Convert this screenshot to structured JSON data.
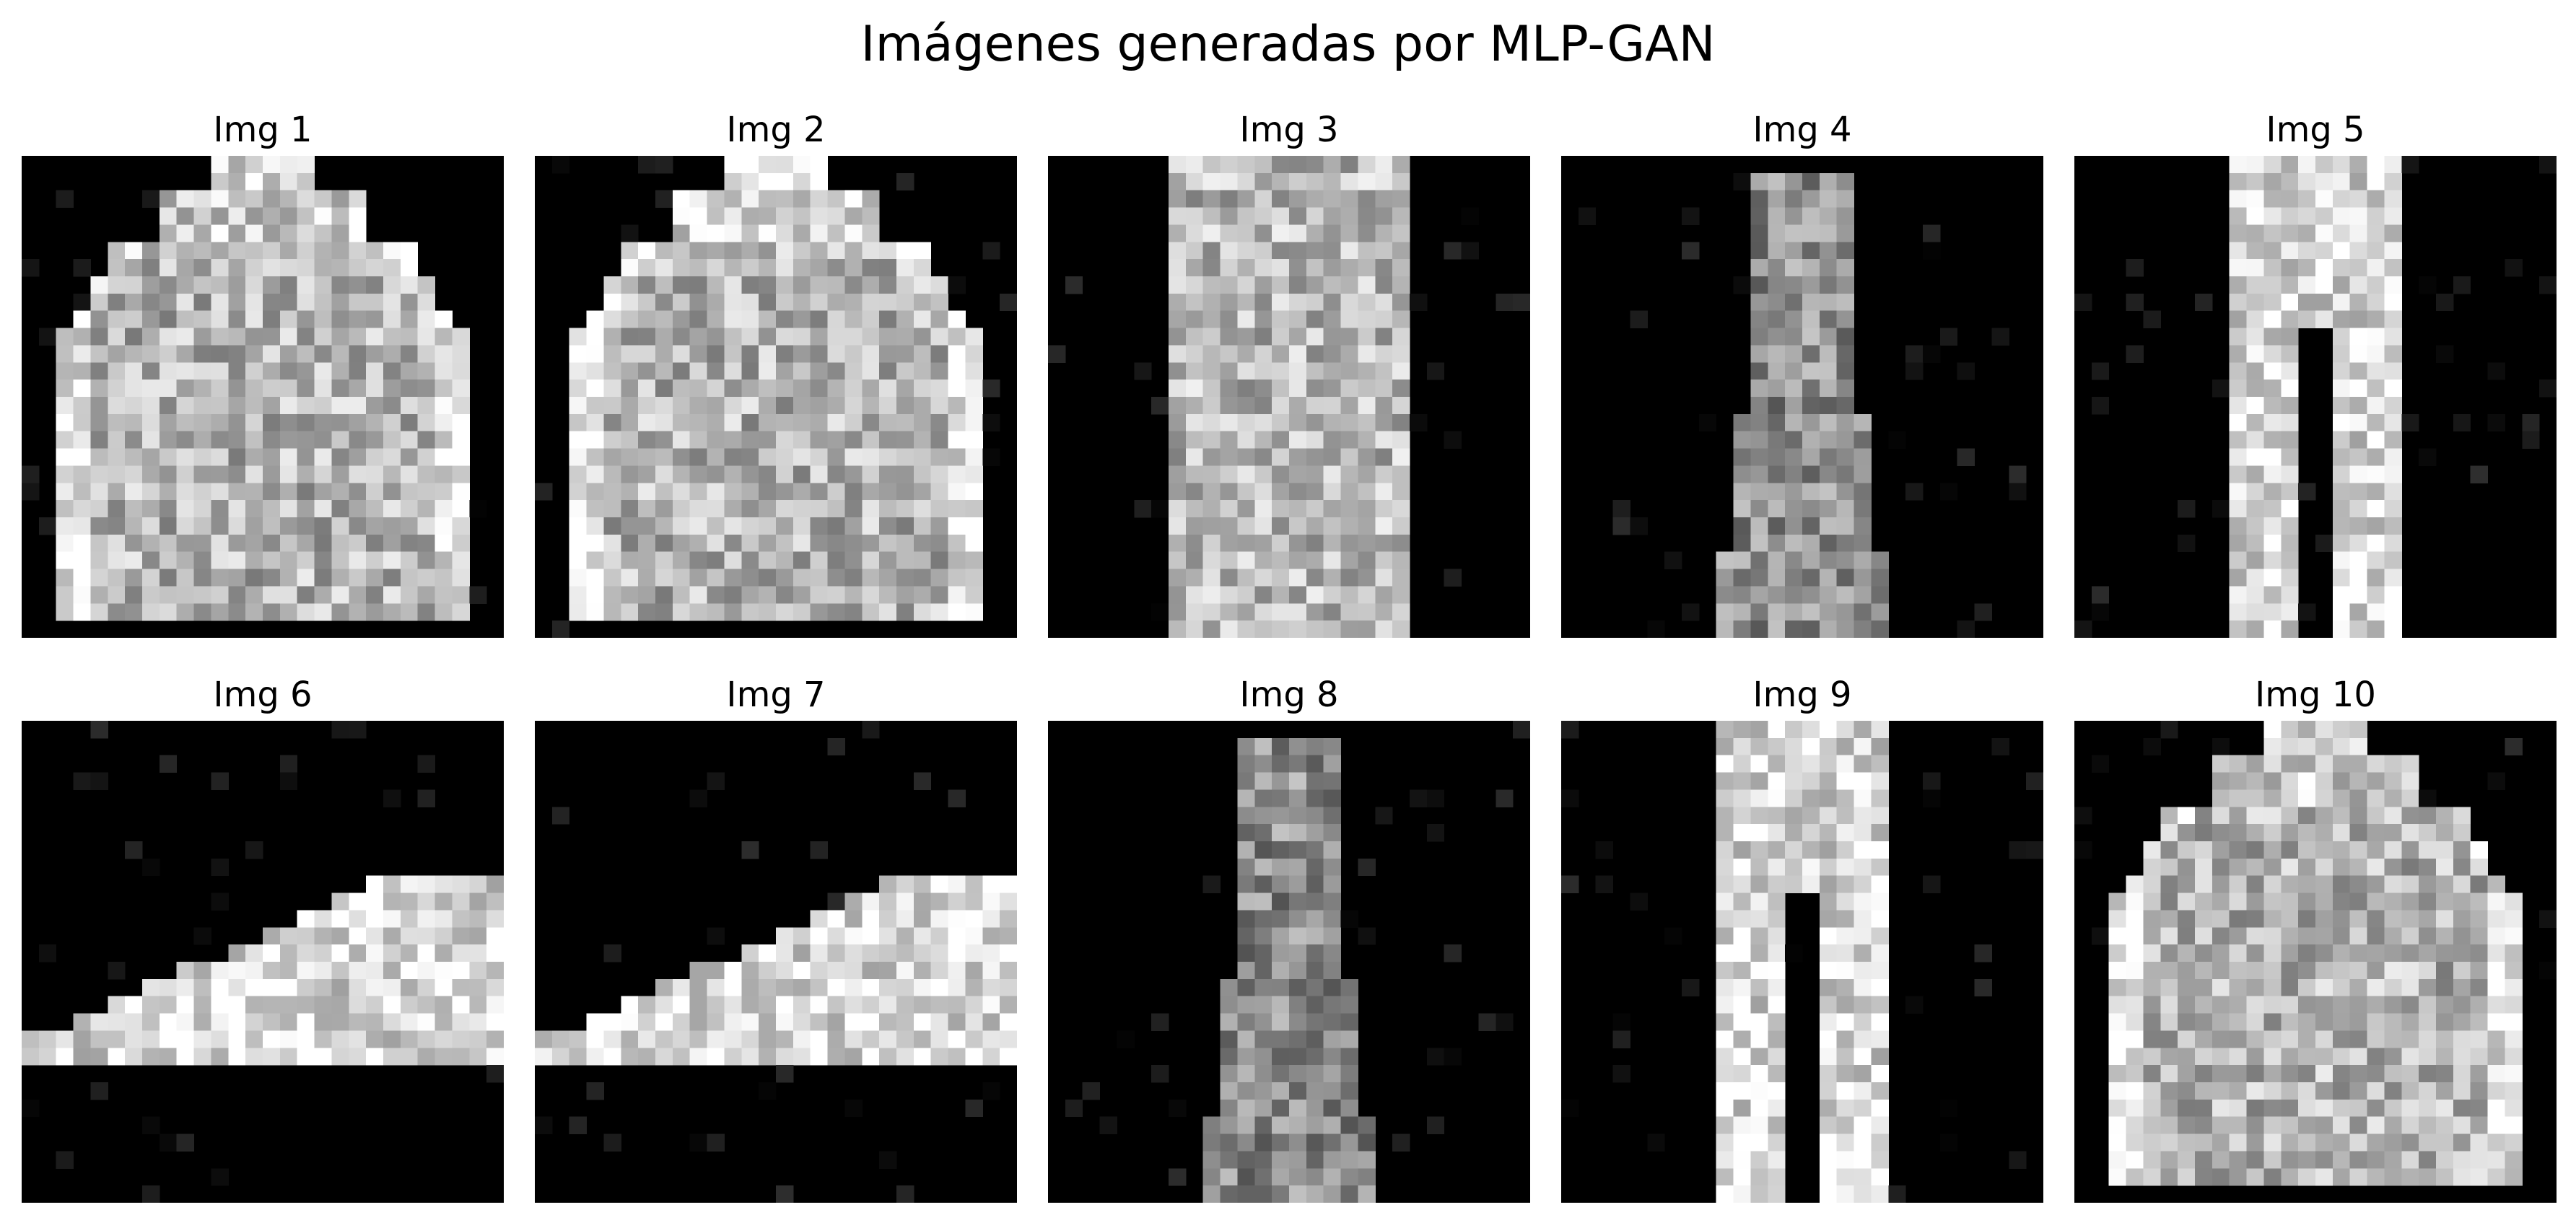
{
  "figure": {
    "title": "Imágenes generadas por MLP-GAN"
  },
  "panels": [
    {
      "title": "Img 1",
      "shape": "pullover"
    },
    {
      "title": "Img 2",
      "shape": "pullover"
    },
    {
      "title": "Img 3",
      "shape": "shirt"
    },
    {
      "title": "Img 4",
      "shape": "dress"
    },
    {
      "title": "Img 5",
      "shape": "trouser"
    },
    {
      "title": "Img 6",
      "shape": "sneaker"
    },
    {
      "title": "Img 7",
      "shape": "sneaker"
    },
    {
      "title": "Img 8",
      "shape": "dress"
    },
    {
      "title": "Img 9",
      "shape": "trouser"
    },
    {
      "title": "Img 10",
      "shape": "pullover"
    }
  ],
  "colormap": "gray"
}
